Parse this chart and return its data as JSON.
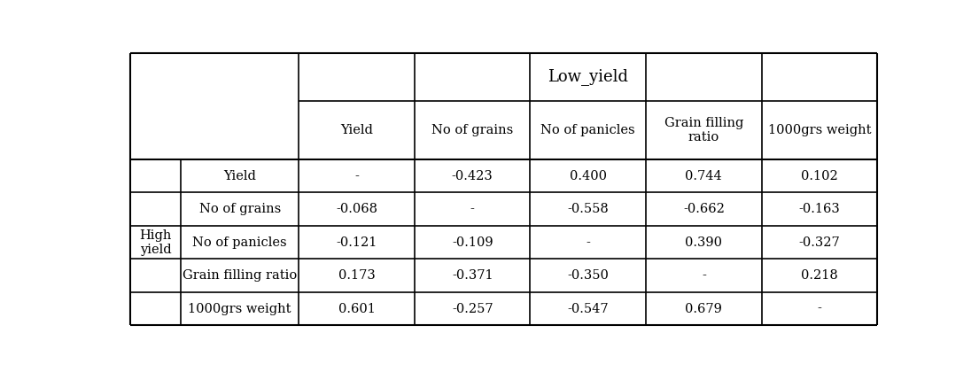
{
  "low_yield_header": "Low_yield",
  "col_headers": [
    "Yield",
    "No of grains",
    "No of panicles",
    "Grain filling\nratio",
    "1000grs weight"
  ],
  "row_label_group": "High\nyield",
  "row_headers": [
    "Yield",
    "No of grains",
    "No of panicles",
    "Grain filling ratio",
    "1000grs weight"
  ],
  "cell_data": [
    [
      "-",
      "-0.423",
      "0.400",
      "0.744",
      "0.102"
    ],
    [
      "-0.068",
      "-",
      "-0.558",
      "-0.662",
      "-0.163"
    ],
    [
      "-0.121",
      "-0.109",
      "-",
      "0.390",
      "-0.327"
    ],
    [
      "0.173",
      "-0.371",
      "-0.350",
      "-",
      "0.218"
    ],
    [
      "0.601",
      "-0.257",
      "-0.547",
      "0.679",
      "-"
    ]
  ],
  "bg_color": "#ffffff",
  "line_color": "#000000",
  "font_size": 10.5,
  "header_font_size": 12
}
